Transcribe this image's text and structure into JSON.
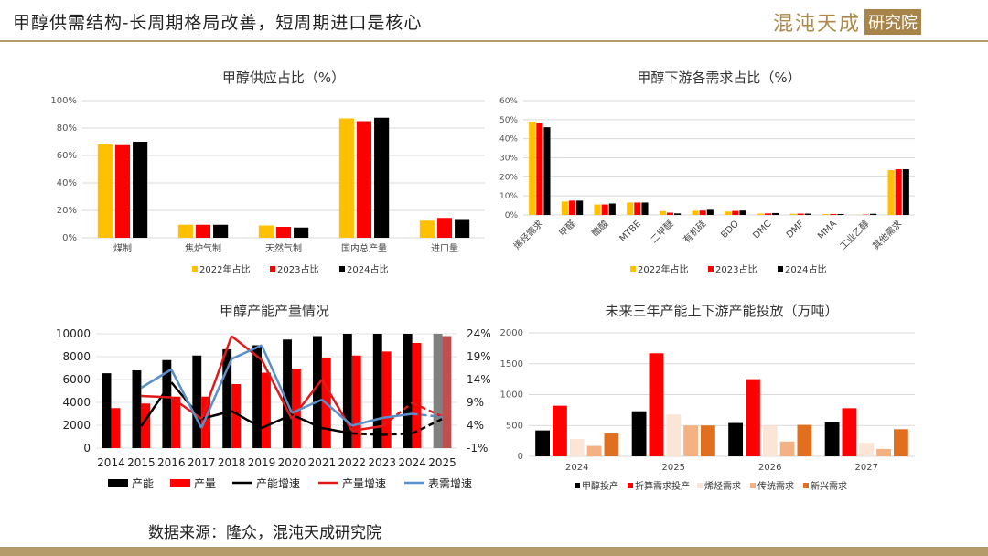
{
  "header": {
    "title": "甲醇供需结构-长周期格局改善，短周期进口是核心",
    "logo_text": "混沌天成",
    "logo_box": "研究院"
  },
  "footer": {
    "source": "数据来源：隆众，混沌天成研究院"
  },
  "colors": {
    "y2022": "#ffc000",
    "y2023": "#ff0000",
    "y2024": "#000000",
    "line_blue": "#5b8fc9",
    "line_red": "#e0191b",
    "accent": "#b59a6a"
  },
  "chart_data": [
    {
      "type": "bar",
      "title": "甲醇供应占比（%）",
      "categories": [
        "煤制",
        "焦炉气制",
        "天然气制",
        "国内总产量",
        "进口量"
      ],
      "series": [
        {
          "name": "2022年占比",
          "values": [
            68,
            9.5,
            9,
            87,
            12.5
          ]
        },
        {
          "name": "2023占比",
          "values": [
            67.5,
            9.5,
            8,
            85,
            14.5
          ]
        },
        {
          "name": "2024占比",
          "values": [
            70,
            9.5,
            7.5,
            87.5,
            13
          ]
        }
      ],
      "ylim": [
        0,
        100
      ],
      "yticks": [
        "0%",
        "20%",
        "40%",
        "60%",
        "80%",
        "100%"
      ],
      "grid": true,
      "legend": "bottom"
    },
    {
      "type": "bar",
      "title": "甲醇下游各需求占比（%）",
      "categories": [
        "烯烃需求",
        "甲醛",
        "醋酸",
        "MTBE",
        "二甲醚",
        "有机硅",
        "BDO",
        "DMC",
        "DMF",
        "MMA",
        "工业乙醇",
        "其他需求"
      ],
      "series": [
        {
          "name": "2022年占比",
          "values": [
            49,
            7,
            5.5,
            6.5,
            2,
            2.2,
            1.8,
            0.7,
            0.6,
            0.5,
            0.1,
            23.5
          ]
        },
        {
          "name": "2023占比",
          "values": [
            48,
            7.5,
            5.5,
            6.5,
            1.2,
            2.3,
            2.1,
            0.8,
            0.7,
            0.5,
            0.2,
            24
          ]
        },
        {
          "name": "2024占比",
          "values": [
            46,
            7.5,
            6,
            6.5,
            0.8,
            2.7,
            2.3,
            1,
            0.7,
            0.5,
            0.6,
            24
          ]
        }
      ],
      "ylim": [
        0,
        60
      ],
      "yticks": [
        "0%",
        "10%",
        "20%",
        "30%",
        "40%",
        "50%",
        "60%"
      ],
      "grid": true,
      "legend": "bottom"
    },
    {
      "type": "bar+line",
      "title": "甲醇产能产量情况",
      "categories": [
        "2014",
        "2015",
        "2016",
        "2017",
        "2018",
        "2019",
        "2020",
        "2021",
        "2022",
        "2023",
        "2024",
        "2025"
      ],
      "bars": [
        {
          "name": "产能",
          "values": [
            6550,
            6800,
            7700,
            8100,
            8650,
            9000,
            9500,
            9800,
            10000,
            10000,
            10000,
            10000
          ]
        },
        {
          "name": "产量",
          "values": [
            3500,
            3900,
            4500,
            4500,
            5600,
            6600,
            6950,
            7900,
            8100,
            8450,
            9200,
            9800
          ]
        }
      ],
      "lines": [
        {
          "name": "产能增速",
          "values": [
            null,
            3.8,
            13.4,
            5.4,
            7.1,
            3.4,
            6.3,
            3.4,
            2.2,
            1.9,
            2.2,
            5.4
          ]
        },
        {
          "name": "产量增速",
          "values": [
            null,
            10.4,
            10.1,
            5.4,
            23.5,
            18.3,
            5.4,
            14,
            2.8,
            3.8,
            8.9,
            5.9
          ]
        },
        {
          "name": "表需增速",
          "values": [
            null,
            12.2,
            16.2,
            3.4,
            18.5,
            21.5,
            6.7,
            9.6,
            3.9,
            5.6,
            6.5,
            5.8
          ]
        }
      ],
      "ylim": [
        0,
        10000
      ],
      "yticks": [
        "0",
        "2000",
        "4000",
        "6000",
        "8000",
        "10000"
      ],
      "y2lim": [
        -1,
        24
      ],
      "y2ticks": [
        "-1%",
        "4%",
        "9%",
        "14%",
        "19%",
        "24%"
      ],
      "legend": "bottom"
    },
    {
      "type": "bar",
      "title": "未来三年产能上下游产能投放（万吨）",
      "categories": [
        "2024",
        "2025",
        "2026",
        "2027"
      ],
      "series": [
        {
          "name": "甲醇投产",
          "values": [
            420,
            730,
            540,
            550
          ],
          "color": "#000000"
        },
        {
          "name": "折算需求投产",
          "values": [
            820,
            1670,
            1250,
            780
          ],
          "color": "#ff0000"
        },
        {
          "name": "烯烃需求",
          "values": [
            280,
            680,
            500,
            220
          ],
          "color": "#fbe5d6"
        },
        {
          "name": "传统需求",
          "values": [
            170,
            500,
            240,
            120
          ],
          "color": "#f4b183"
        },
        {
          "name": "新兴需求",
          "values": [
            370,
            500,
            510,
            440
          ],
          "color": "#e07020"
        }
      ],
      "ylim": [
        0,
        2000
      ],
      "yticks": [
        "0",
        "500",
        "1000",
        "1500",
        "2000"
      ],
      "grid": true,
      "legend": "bottom"
    }
  ]
}
